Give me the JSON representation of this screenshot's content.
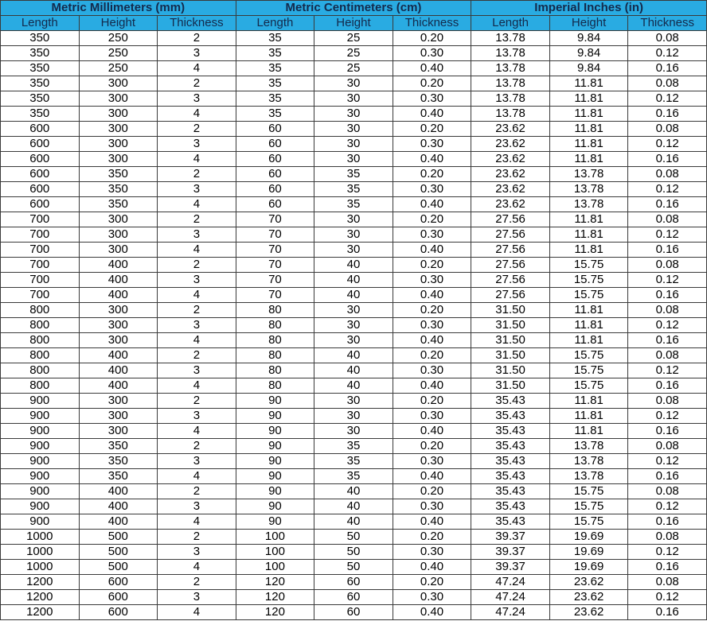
{
  "colors": {
    "header_bg": "#29abe2",
    "header_text": "#142a4c",
    "border": "#3a3a3a"
  },
  "groups": [
    "Metric Millimeters (mm)",
    "Metric Centimeters (cm)",
    "Imperial Inches (in)"
  ],
  "columns": [
    "Length",
    "Height",
    "Thickness",
    "Length",
    "Height",
    "Thickness",
    "Length",
    "Height",
    "Thickness"
  ],
  "rows": [
    [
      "350",
      "250",
      "2",
      "35",
      "25",
      "0.20",
      "13.78",
      "9.84",
      "0.08"
    ],
    [
      "350",
      "250",
      "3",
      "35",
      "25",
      "0.30",
      "13.78",
      "9.84",
      "0.12"
    ],
    [
      "350",
      "250",
      "4",
      "35",
      "25",
      "0.40",
      "13.78",
      "9.84",
      "0.16"
    ],
    [
      "350",
      "300",
      "2",
      "35",
      "30",
      "0.20",
      "13.78",
      "11.81",
      "0.08"
    ],
    [
      "350",
      "300",
      "3",
      "35",
      "30",
      "0.30",
      "13.78",
      "11.81",
      "0.12"
    ],
    [
      "350",
      "300",
      "4",
      "35",
      "30",
      "0.40",
      "13.78",
      "11.81",
      "0.16"
    ],
    [
      "600",
      "300",
      "2",
      "60",
      "30",
      "0.20",
      "23.62",
      "11.81",
      "0.08"
    ],
    [
      "600",
      "300",
      "3",
      "60",
      "30",
      "0.30",
      "23.62",
      "11.81",
      "0.12"
    ],
    [
      "600",
      "300",
      "4",
      "60",
      "30",
      "0.40",
      "23.62",
      "11.81",
      "0.16"
    ],
    [
      "600",
      "350",
      "2",
      "60",
      "35",
      "0.20",
      "23.62",
      "13.78",
      "0.08"
    ],
    [
      "600",
      "350",
      "3",
      "60",
      "35",
      "0.30",
      "23.62",
      "13.78",
      "0.12"
    ],
    [
      "600",
      "350",
      "4",
      "60",
      "35",
      "0.40",
      "23.62",
      "13.78",
      "0.16"
    ],
    [
      "700",
      "300",
      "2",
      "70",
      "30",
      "0.20",
      "27.56",
      "11.81",
      "0.08"
    ],
    [
      "700",
      "300",
      "3",
      "70",
      "30",
      "0.30",
      "27.56",
      "11.81",
      "0.12"
    ],
    [
      "700",
      "300",
      "4",
      "70",
      "30",
      "0.40",
      "27.56",
      "11.81",
      "0.16"
    ],
    [
      "700",
      "400",
      "2",
      "70",
      "40",
      "0.20",
      "27.56",
      "15.75",
      "0.08"
    ],
    [
      "700",
      "400",
      "3",
      "70",
      "40",
      "0.30",
      "27.56",
      "15.75",
      "0.12"
    ],
    [
      "700",
      "400",
      "4",
      "70",
      "40",
      "0.40",
      "27.56",
      "15.75",
      "0.16"
    ],
    [
      "800",
      "300",
      "2",
      "80",
      "30",
      "0.20",
      "31.50",
      "11.81",
      "0.08"
    ],
    [
      "800",
      "300",
      "3",
      "80",
      "30",
      "0.30",
      "31.50",
      "11.81",
      "0.12"
    ],
    [
      "800",
      "300",
      "4",
      "80",
      "30",
      "0.40",
      "31.50",
      "11.81",
      "0.16"
    ],
    [
      "800",
      "400",
      "2",
      "80",
      "40",
      "0.20",
      "31.50",
      "15.75",
      "0.08"
    ],
    [
      "800",
      "400",
      "3",
      "80",
      "40",
      "0.30",
      "31.50",
      "15.75",
      "0.12"
    ],
    [
      "800",
      "400",
      "4",
      "80",
      "40",
      "0.40",
      "31.50",
      "15.75",
      "0.16"
    ],
    [
      "900",
      "300",
      "2",
      "90",
      "30",
      "0.20",
      "35.43",
      "11.81",
      "0.08"
    ],
    [
      "900",
      "300",
      "3",
      "90",
      "30",
      "0.30",
      "35.43",
      "11.81",
      "0.12"
    ],
    [
      "900",
      "300",
      "4",
      "90",
      "30",
      "0.40",
      "35.43",
      "11.81",
      "0.16"
    ],
    [
      "900",
      "350",
      "2",
      "90",
      "35",
      "0.20",
      "35.43",
      "13.78",
      "0.08"
    ],
    [
      "900",
      "350",
      "3",
      "90",
      "35",
      "0.30",
      "35.43",
      "13.78",
      "0.12"
    ],
    [
      "900",
      "350",
      "4",
      "90",
      "35",
      "0.40",
      "35.43",
      "13.78",
      "0.16"
    ],
    [
      "900",
      "400",
      "2",
      "90",
      "40",
      "0.20",
      "35.43",
      "15.75",
      "0.08"
    ],
    [
      "900",
      "400",
      "3",
      "90",
      "40",
      "0.30",
      "35.43",
      "15.75",
      "0.12"
    ],
    [
      "900",
      "400",
      "4",
      "90",
      "40",
      "0.40",
      "35.43",
      "15.75",
      "0.16"
    ],
    [
      "1000",
      "500",
      "2",
      "100",
      "50",
      "0.20",
      "39.37",
      "19.69",
      "0.08"
    ],
    [
      "1000",
      "500",
      "3",
      "100",
      "50",
      "0.30",
      "39.37",
      "19.69",
      "0.12"
    ],
    [
      "1000",
      "500",
      "4",
      "100",
      "50",
      "0.40",
      "39.37",
      "19.69",
      "0.16"
    ],
    [
      "1200",
      "600",
      "2",
      "120",
      "60",
      "0.20",
      "47.24",
      "23.62",
      "0.08"
    ],
    [
      "1200",
      "600",
      "3",
      "120",
      "60",
      "0.30",
      "47.24",
      "23.62",
      "0.12"
    ],
    [
      "1200",
      "600",
      "4",
      "120",
      "60",
      "0.40",
      "47.24",
      "23.62",
      "0.16"
    ]
  ]
}
